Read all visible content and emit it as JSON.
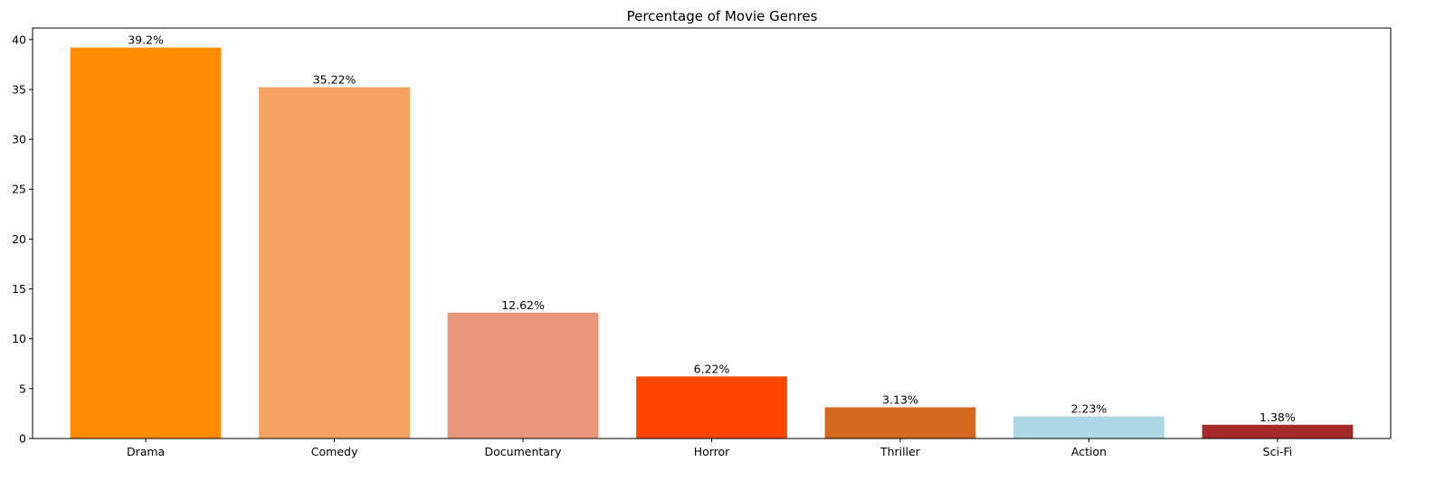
{
  "chart_data": {
    "type": "bar",
    "title": "Percentage of Movie Genres",
    "xlabel": "",
    "ylabel": "",
    "categories": [
      "Drama",
      "Comedy",
      "Documentary",
      "Horror",
      "Thriller",
      "Action",
      "Sci-Fi"
    ],
    "values": [
      39.2,
      35.22,
      12.62,
      6.22,
      3.13,
      2.23,
      1.38
    ],
    "value_labels": [
      "39.2%",
      "35.22%",
      "12.62%",
      "6.22%",
      "3.13%",
      "2.23%",
      "1.38%"
    ],
    "colors": [
      "#ff8c00",
      "#f4a460",
      "#e9967a",
      "#ff4500",
      "#d2691e",
      "#add8e6",
      "#a52a2a"
    ],
    "ylim": [
      0,
      41.16
    ],
    "yticks": [
      0,
      5,
      10,
      15,
      20,
      25,
      30,
      35,
      40
    ],
    "ytick_labels": [
      "0",
      "5",
      "10",
      "15",
      "20",
      "25",
      "30",
      "35",
      "40"
    ],
    "grid": false,
    "legend": "none"
  }
}
